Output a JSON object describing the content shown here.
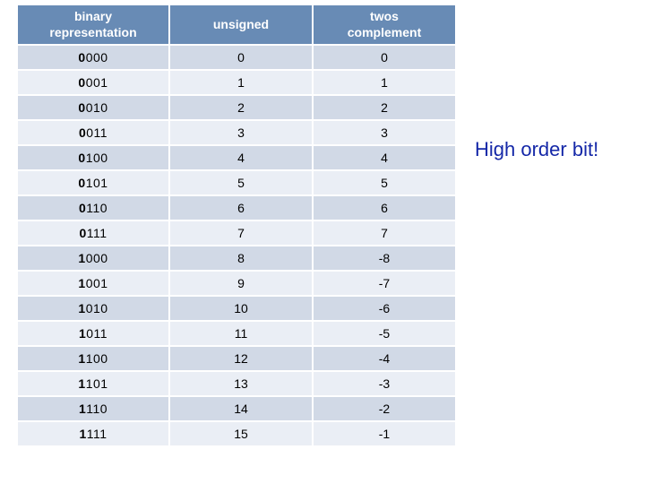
{
  "table": {
    "columns": [
      "binary\nrepresentation",
      "unsigned",
      "twos\ncomplement"
    ],
    "col_widths": [
      "170px",
      "160px",
      "160px"
    ],
    "header_bg": "#688bb5",
    "header_fg": "#ffffff",
    "band_colors": [
      "#d1d9e6",
      "#eaeef5"
    ],
    "header_fontsize": 14,
    "cell_fontsize": 14,
    "rows": [
      {
        "hi": "0",
        "rest": "000",
        "unsigned": "0",
        "twos": "0"
      },
      {
        "hi": "0",
        "rest": "001",
        "unsigned": "1",
        "twos": "1"
      },
      {
        "hi": "0",
        "rest": "010",
        "unsigned": "2",
        "twos": "2"
      },
      {
        "hi": "0",
        "rest": "011",
        "unsigned": "3",
        "twos": "3"
      },
      {
        "hi": "0",
        "rest": "100",
        "unsigned": "4",
        "twos": "4"
      },
      {
        "hi": "0",
        "rest": "101",
        "unsigned": "5",
        "twos": "5"
      },
      {
        "hi": "0",
        "rest": "110",
        "unsigned": "6",
        "twos": "6"
      },
      {
        "hi": "0",
        "rest": "111",
        "unsigned": "7",
        "twos": "7"
      },
      {
        "hi": "1",
        "rest": "000",
        "unsigned": "8",
        "twos": "-8"
      },
      {
        "hi": "1",
        "rest": "001",
        "unsigned": "9",
        "twos": "-7"
      },
      {
        "hi": "1",
        "rest": "010",
        "unsigned": "10",
        "twos": "-6"
      },
      {
        "hi": "1",
        "rest": "011",
        "unsigned": "11",
        "twos": "-5"
      },
      {
        "hi": "1",
        "rest": "100",
        "unsigned": "12",
        "twos": "-4"
      },
      {
        "hi": "1",
        "rest": "101",
        "unsigned": "13",
        "twos": "-3"
      },
      {
        "hi": "1",
        "rest": "110",
        "unsigned": "14",
        "twos": "-2"
      },
      {
        "hi": "1",
        "rest": "111",
        "unsigned": "15",
        "twos": "-1"
      }
    ]
  },
  "callout": {
    "text": "High order bit!",
    "color": "#1528a8",
    "fontsize": 22
  }
}
